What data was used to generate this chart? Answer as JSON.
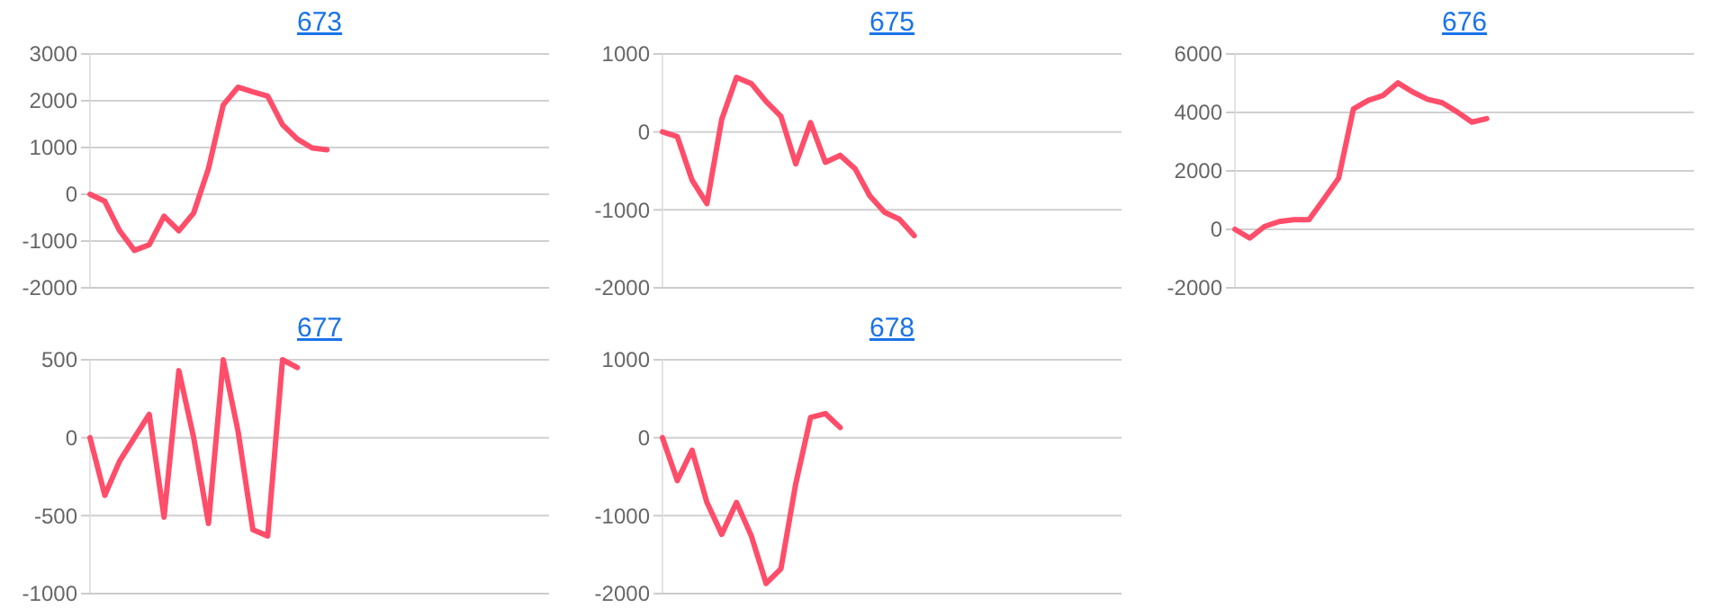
{
  "chart_data": [
    {
      "type": "line",
      "title": "673",
      "categories": [
        null,
        null,
        null,
        null,
        null,
        null,
        null,
        null,
        null,
        null,
        null,
        null,
        null,
        null,
        null,
        null,
        null,
        null,
        null,
        null,
        null,
        null,
        null,
        null,
        null,
        null,
        null,
        null,
        null,
        null,
        null,
        null
      ],
      "series": [
        {
          "color": "#ff4d6a",
          "values": [
            0,
            -150,
            -780,
            -1200,
            -1080,
            -470,
            -780,
            -400,
            550,
            1910,
            2290,
            2190,
            2100,
            1490,
            1180,
            990,
            950,
            null,
            null,
            null,
            null,
            null,
            null,
            null,
            null,
            null,
            null,
            null,
            null,
            null,
            null,
            null
          ]
        }
      ],
      "ylim": [
        -2000,
        3000
      ],
      "yticks": [
        -2000,
        -1000,
        0,
        1000,
        2000,
        3000
      ],
      "grid": true
    },
    {
      "type": "line",
      "title": "675",
      "categories": [
        null,
        null,
        null,
        null,
        null,
        null,
        null,
        null,
        null,
        null,
        null,
        null,
        null,
        null,
        null,
        null,
        null,
        null,
        null,
        null,
        null,
        null,
        null,
        null,
        null,
        null,
        null,
        null,
        null,
        null,
        null,
        null
      ],
      "series": [
        {
          "color": "#ff4d6a",
          "values": [
            0,
            -60,
            -620,
            -920,
            160,
            700,
            620,
            390,
            200,
            -410,
            120,
            -390,
            -300,
            -470,
            -820,
            -1030,
            -1120,
            -1330,
            null,
            null,
            null,
            null,
            null,
            null,
            null,
            null,
            null,
            null,
            null,
            null,
            null,
            null
          ]
        }
      ],
      "ylim": [
        -2000,
        1000
      ],
      "yticks": [
        -2000,
        -1000,
        0,
        1000
      ],
      "grid": true
    },
    {
      "type": "line",
      "title": "676",
      "categories": [
        null,
        null,
        null,
        null,
        null,
        null,
        null,
        null,
        null,
        null,
        null,
        null,
        null,
        null,
        null,
        null,
        null,
        null,
        null,
        null,
        null,
        null,
        null,
        null,
        null,
        null,
        null,
        null,
        null,
        null,
        null,
        null
      ],
      "series": [
        {
          "color": "#ff4d6a",
          "values": [
            0,
            -300,
            100,
            270,
            330,
            330,
            1030,
            1750,
            4120,
            4410,
            4580,
            5010,
            4700,
            4450,
            4330,
            4020,
            3670,
            3790,
            null,
            null,
            null,
            null,
            null,
            null,
            null,
            null,
            null,
            null,
            null,
            null,
            null,
            null
          ]
        }
      ],
      "ylim": [
        -2000,
        6000
      ],
      "yticks": [
        -2000,
        0,
        2000,
        4000,
        6000
      ],
      "grid": true
    },
    {
      "type": "line",
      "title": "677",
      "categories": [
        null,
        null,
        null,
        null,
        null,
        null,
        null,
        null,
        null,
        null,
        null,
        null,
        null,
        null,
        null,
        null,
        null,
        null,
        null,
        null,
        null,
        null,
        null,
        null,
        null,
        null,
        null,
        null,
        null,
        null,
        null,
        null
      ],
      "series": [
        {
          "color": "#ff4d6a",
          "values": [
            0,
            -370,
            -150,
            0,
            150,
            -510,
            430,
            0,
            -550,
            500,
            40,
            -590,
            -630,
            500,
            450,
            null,
            null,
            null,
            null,
            null,
            null,
            null,
            null,
            null,
            null,
            null,
            null,
            null,
            null,
            null,
            null,
            null
          ]
        }
      ],
      "ylim": [
        -1000,
        500
      ],
      "yticks": [
        -1000,
        -500,
        0,
        500
      ],
      "grid": true
    },
    {
      "type": "line",
      "title": "678",
      "categories": [
        null,
        null,
        null,
        null,
        null,
        null,
        null,
        null,
        null,
        null,
        null,
        null,
        null,
        null,
        null,
        null,
        null,
        null,
        null,
        null,
        null,
        null,
        null,
        null,
        null,
        null,
        null,
        null,
        null,
        null,
        null,
        null
      ],
      "series": [
        {
          "color": "#ff4d6a",
          "values": [
            0,
            -550,
            -160,
            -830,
            -1240,
            -830,
            -1260,
            -1870,
            -1680,
            -590,
            260,
            310,
            130,
            null,
            null,
            null,
            null,
            null,
            null,
            null,
            null,
            null,
            null,
            null,
            null,
            null,
            null,
            null,
            null,
            null,
            null,
            null
          ]
        }
      ],
      "ylim": [
        -2000,
        1000
      ],
      "yticks": [
        -2000,
        -1000,
        0,
        1000
      ],
      "grid": true
    }
  ]
}
